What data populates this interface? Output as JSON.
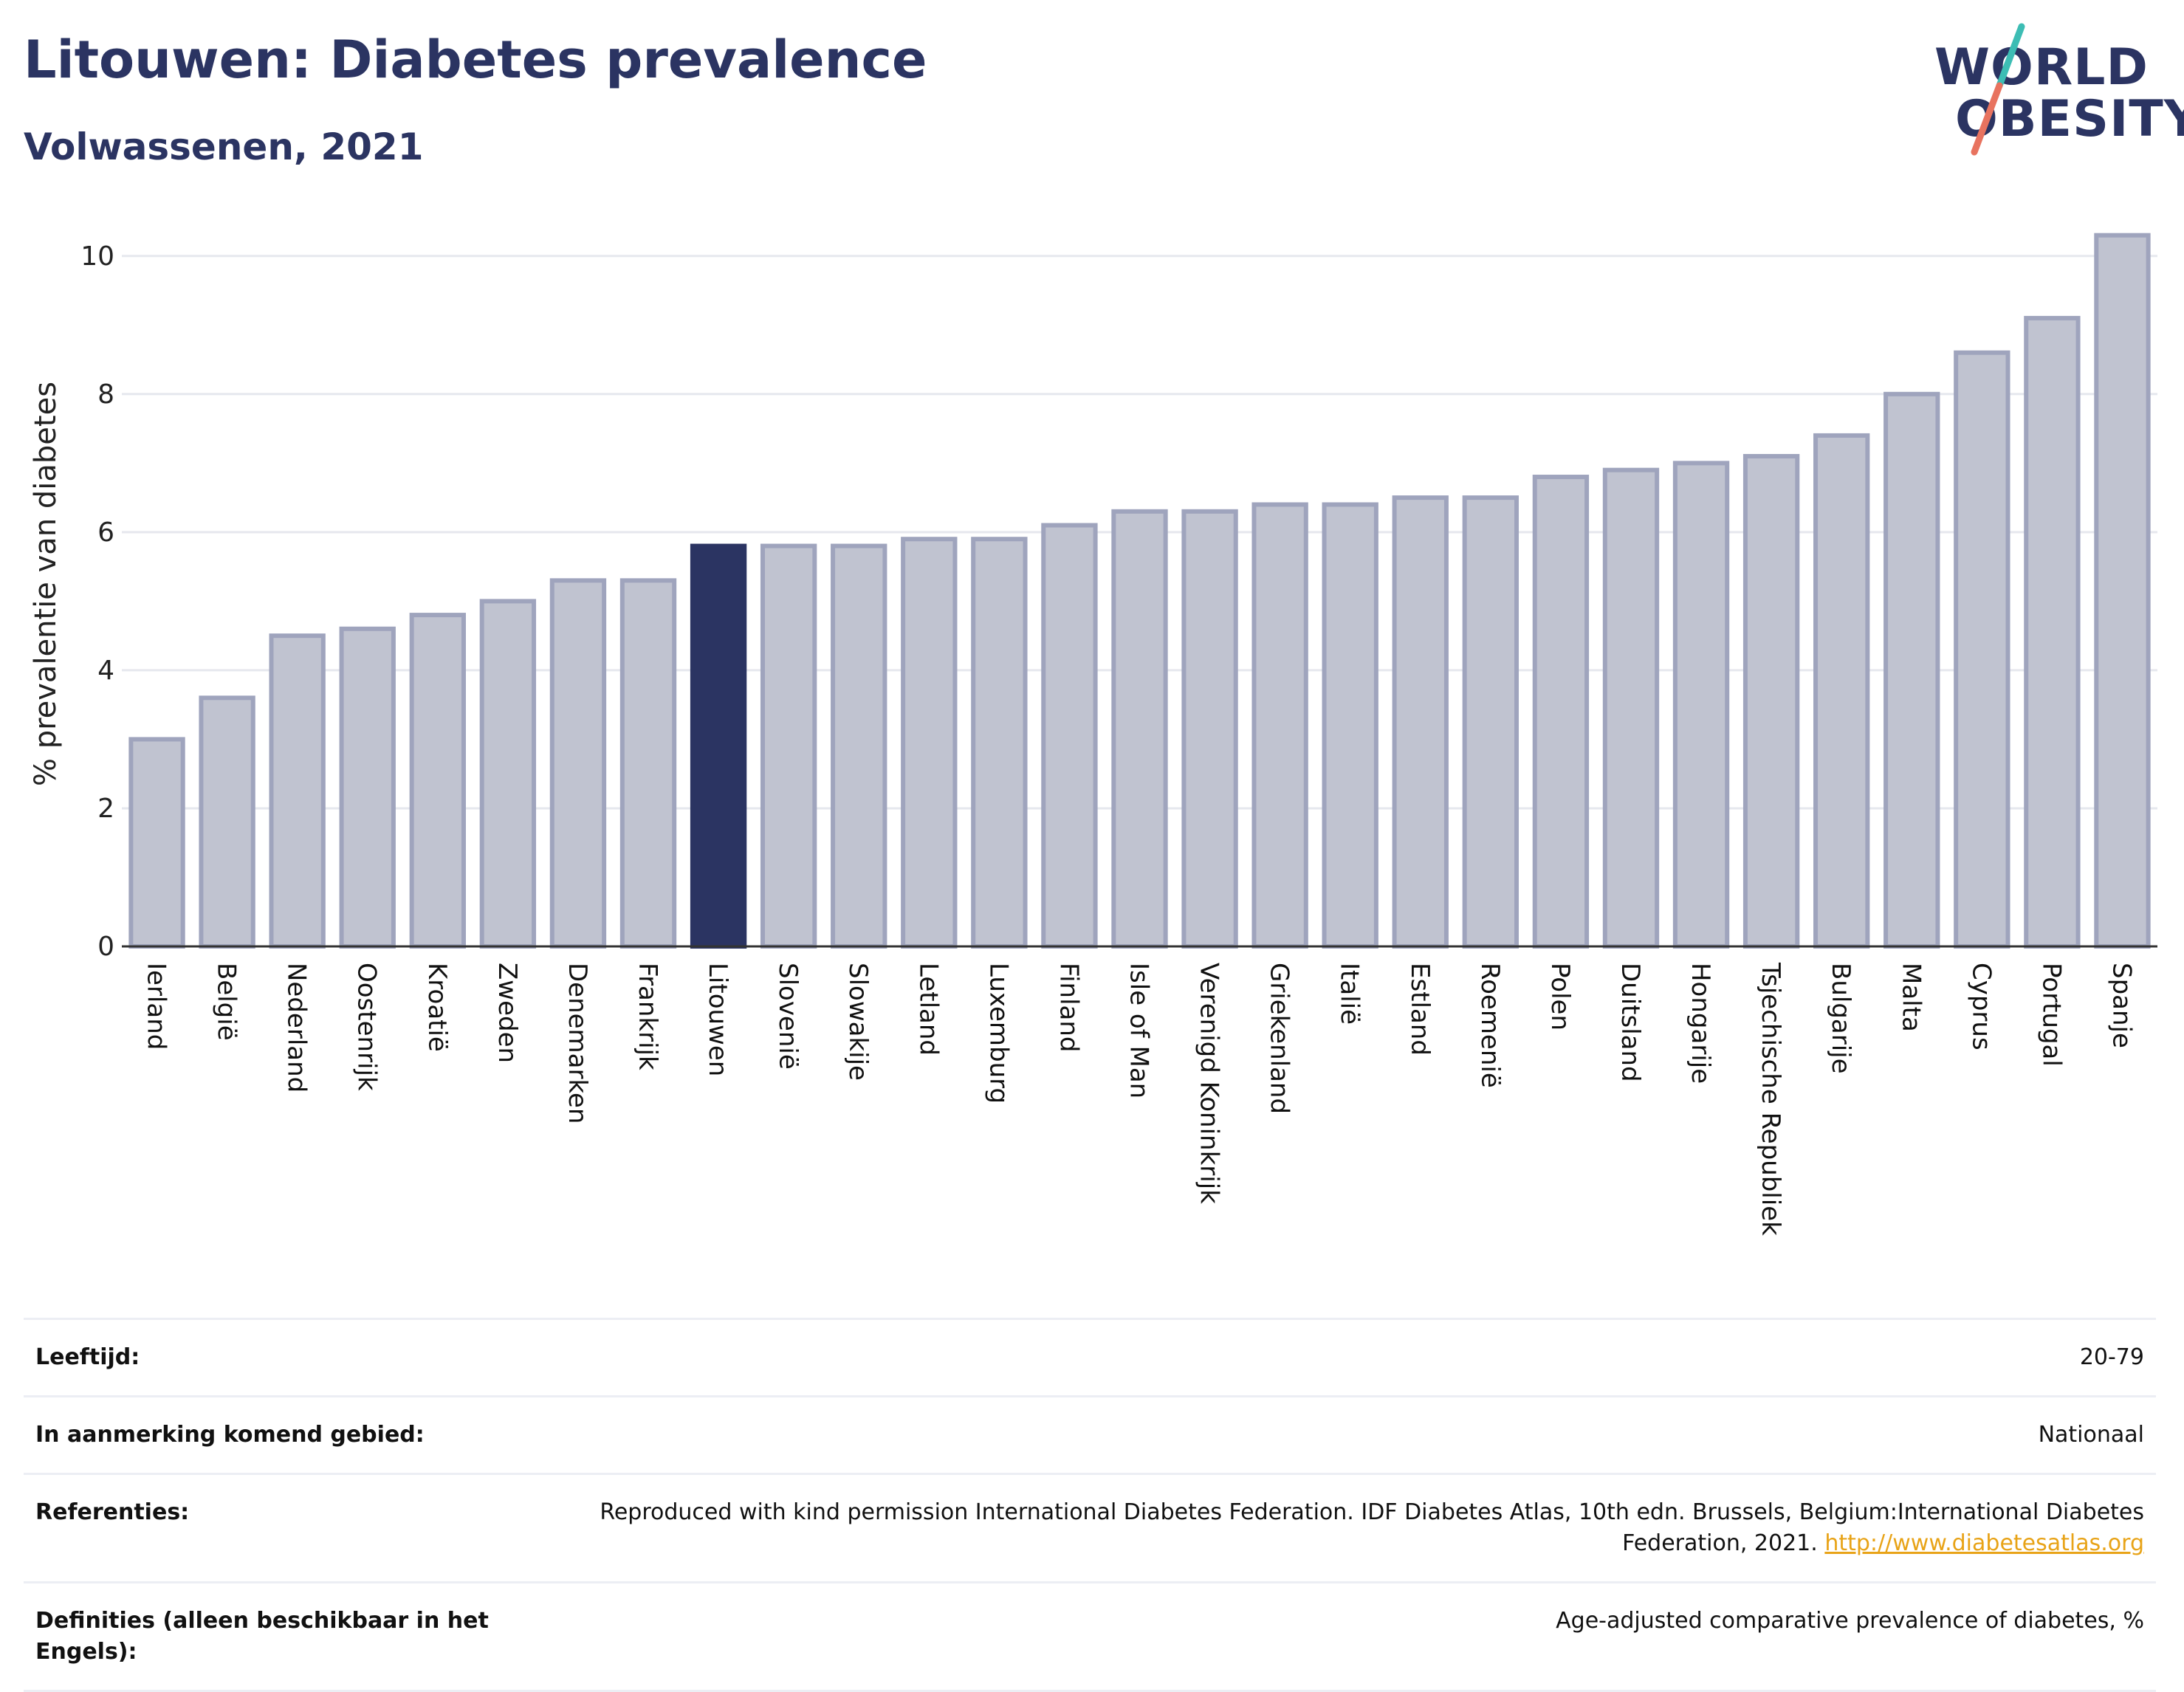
{
  "header": {
    "title": "Litouwen: Diabetes prevalence",
    "subtitle": "Volwassenen, 2021"
  },
  "logo": {
    "line1": "WORLD",
    "line2": "OBESITY",
    "accent_colors": [
      "#3dbdb4",
      "#e8735f"
    ]
  },
  "colors": {
    "bar": "#c0c3d0",
    "bar_border": "#9fa4bd",
    "highlight": "#2b3462",
    "grid": "#e6e8ee"
  },
  "chart_data": {
    "type": "bar",
    "ylabel": "% prevalentie van diabetes",
    "ylim": [
      0,
      10.5
    ],
    "yticks": [
      0,
      2,
      4,
      6,
      8,
      10
    ],
    "grid": true,
    "highlight": "Litouwen",
    "categories": [
      "Ierland",
      "België",
      "Nederland",
      "Oostenrijk",
      "Kroatië",
      "Zweden",
      "Denemarken",
      "Frankrijk",
      "Litouwen",
      "Slovenië",
      "Slowakije",
      "Letland",
      "Luxemburg",
      "Finland",
      "Isle of Man",
      "Verenigd Koninkrijk",
      "Griekenland",
      "Italië",
      "Estland",
      "Roemenië",
      "Polen",
      "Duitsland",
      "Hongarije",
      "Tsjechische Republiek",
      "Bulgarije",
      "Malta",
      "Cyprus",
      "Portugal",
      "Spanje"
    ],
    "values": [
      3.0,
      3.6,
      4.5,
      4.6,
      4.8,
      5.0,
      5.3,
      5.3,
      5.8,
      5.8,
      5.8,
      5.9,
      5.9,
      6.1,
      6.3,
      6.3,
      6.4,
      6.4,
      6.5,
      6.5,
      6.8,
      6.9,
      7.0,
      7.1,
      7.4,
      8.0,
      8.6,
      9.1,
      10.3
    ]
  },
  "info": {
    "age_label": "Leeftijd:",
    "age_value": "20-79",
    "area_label": "In aanmerking komend gebied:",
    "area_value": "Nationaal",
    "ref_label": "Referenties:",
    "ref_value": "Reproduced with kind permission International Diabetes Federation.  IDF Diabetes Atlas, 10th edn. Brussels, Belgium:International Diabetes Federation, 2021.",
    "ref_link": "http://www.diabetesatlas.org",
    "def_label": "Definities (alleen beschikbaar in het Engels):",
    "def_value": "Age-adjusted comparative prevalence of diabetes, %"
  }
}
